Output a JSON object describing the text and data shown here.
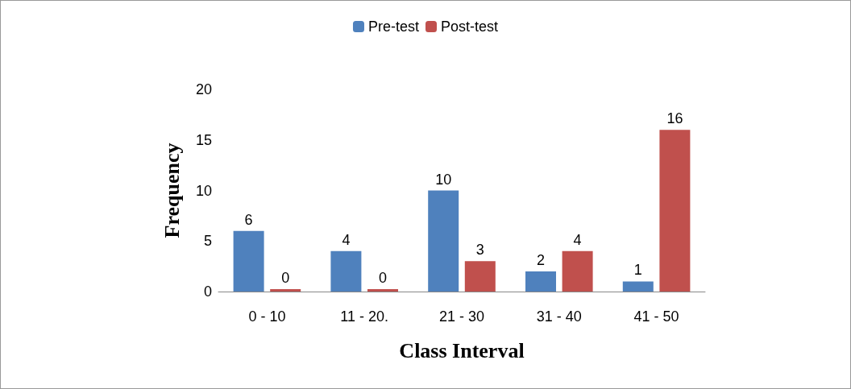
{
  "chart_data": {
    "type": "bar",
    "xlabel": "Class Interval",
    "ylabel": "Frequency",
    "categories": [
      "0 - 10",
      "11 - 20.",
      "21 - 30",
      "31 - 40",
      "41 - 50"
    ],
    "series": [
      {
        "name": "Pre-test",
        "color": "#4f81bd",
        "values": [
          6,
          4,
          10,
          2,
          1
        ]
      },
      {
        "name": "Post-test",
        "color": "#c0504d",
        "values": [
          0,
          0,
          3,
          4,
          16
        ]
      }
    ],
    "ylim": [
      0,
      20
    ],
    "yticks": [
      0,
      5,
      10,
      15,
      20
    ],
    "legend": "top",
    "data_labels": true
  }
}
